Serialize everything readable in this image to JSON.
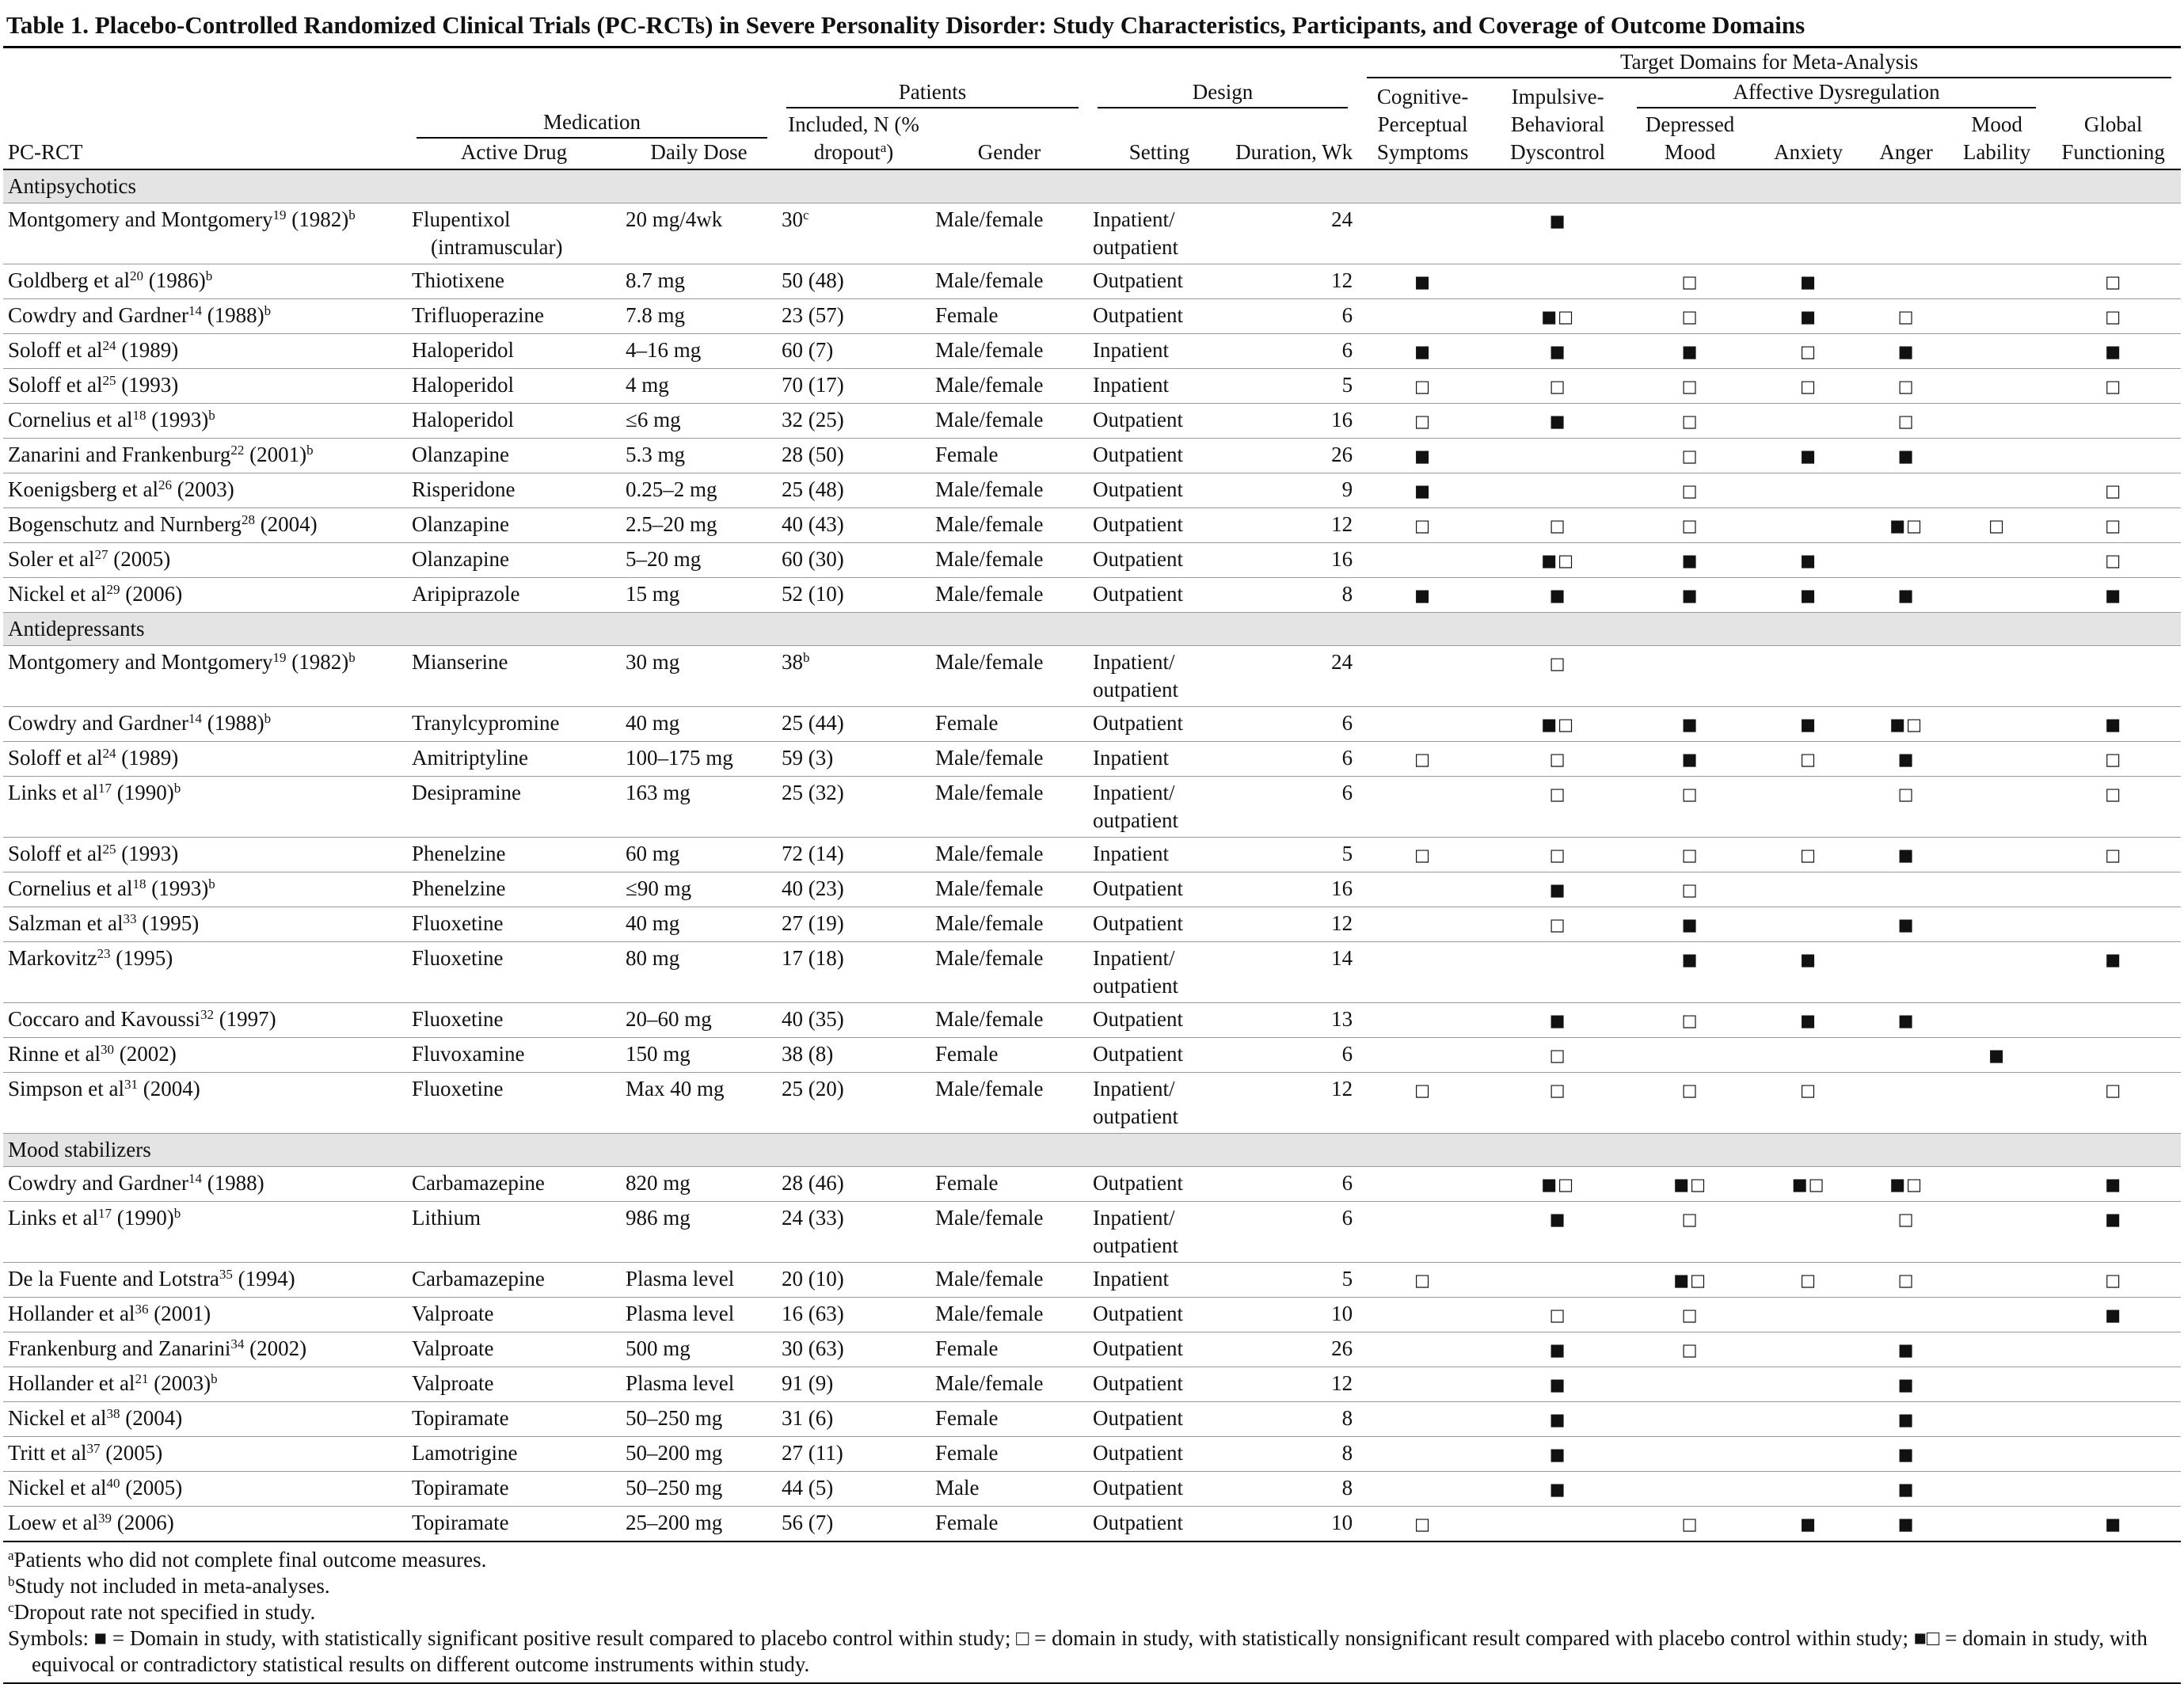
{
  "title": "Table 1. Placebo-Controlled Randomized Clinical Trials (PC-RCTs) in Severe Personality Disorder: Study Characteristics, Participants, and Coverage of Outcome Domains",
  "header": {
    "pc_rct": "PC-RCT",
    "medication": "Medication",
    "active_drug": "Active Drug",
    "daily_dose": "Daily Dose",
    "patients": "Patients",
    "included": "Included, N (% dropout",
    "included_note": "a",
    "included_close": ")",
    "gender": "Gender",
    "design": "Design",
    "setting": "Setting",
    "duration": "Duration, Wk",
    "target": "Target Domains for Meta-Analysis",
    "affective": "Affective Dysregulation",
    "domains": [
      "Cognitive-Perceptual Symptoms",
      "Impulsive-Behavioral Dyscontrol",
      "Depressed Mood",
      "Anxiety",
      "Anger",
      "Mood Lability",
      "Global Functioning"
    ]
  },
  "sections": [
    {
      "name": "Antipsychotics",
      "rows": [
        {
          "study": "Montgomery and Montgomery",
          "ref": "19",
          "year": "(1982)",
          "note": "b",
          "drug": "Flupentixol (intramuscular)",
          "dose": "20 mg/4wk",
          "n": "30",
          "n_note": "c",
          "gender": "Male/female",
          "setting": "Inpatient/ outpatient",
          "weeks": 24,
          "domains": [
            null,
            "■",
            null,
            null,
            null,
            null,
            null
          ]
        },
        {
          "study": "Goldberg et al",
          "ref": "20",
          "year": "(1986)",
          "note": "b",
          "drug": "Thiotixene",
          "dose": "8.7 mg",
          "n": "50 (48)",
          "gender": "Male/female",
          "setting": "Outpatient",
          "weeks": 12,
          "domains": [
            "■",
            null,
            "□",
            "■",
            null,
            null,
            "□"
          ]
        },
        {
          "study": "Cowdry and Gardner",
          "ref": "14",
          "year": "(1988)",
          "note": "b",
          "drug": "Trifluoperazine",
          "dose": "7.8 mg",
          "n": "23 (57)",
          "gender": "Female",
          "setting": "Outpatient",
          "weeks": 6,
          "domains": [
            null,
            "■□",
            "□",
            "■",
            "□",
            null,
            "□"
          ]
        },
        {
          "study": "Soloff et al",
          "ref": "24",
          "year": "(1989)",
          "drug": "Haloperidol",
          "dose": "4–16 mg",
          "n": "60 (7)",
          "gender": "Male/female",
          "setting": "Inpatient",
          "weeks": 6,
          "domains": [
            "■",
            "■",
            "■",
            "□",
            "■",
            null,
            "■"
          ]
        },
        {
          "study": "Soloff et al",
          "ref": "25",
          "year": "(1993)",
          "drug": "Haloperidol",
          "dose": "4 mg",
          "n": "70 (17)",
          "gender": "Male/female",
          "setting": "Inpatient",
          "weeks": 5,
          "domains": [
            "□",
            "□",
            "□",
            "□",
            "□",
            null,
            "□"
          ]
        },
        {
          "study": "Cornelius et al",
          "ref": "18",
          "year": "(1993)",
          "note": "b",
          "drug": "Haloperidol",
          "dose": "≤6 mg",
          "n": "32 (25)",
          "gender": "Male/female",
          "setting": "Outpatient",
          "weeks": 16,
          "domains": [
            "□",
            "■",
            "□",
            null,
            "□",
            null,
            null
          ]
        },
        {
          "study": "Zanarini and Frankenburg",
          "ref": "22",
          "year": "(2001)",
          "note": "b",
          "drug": "Olanzapine",
          "dose": "5.3 mg",
          "n": "28 (50)",
          "gender": "Female",
          "setting": "Outpatient",
          "weeks": 26,
          "domains": [
            "■",
            null,
            "□",
            "■",
            "■",
            null,
            null
          ]
        },
        {
          "study": "Koenigsberg et al",
          "ref": "26",
          "year": "(2003)",
          "drug": "Risperidone",
          "dose": "0.25–2 mg",
          "n": "25 (48)",
          "gender": "Male/female",
          "setting": "Outpatient",
          "weeks": 9,
          "domains": [
            "■",
            null,
            "□",
            null,
            null,
            null,
            "□"
          ]
        },
        {
          "study": "Bogenschutz and Nurnberg",
          "ref": "28",
          "year": "(2004)",
          "drug": "Olanzapine",
          "dose": "2.5–20 mg",
          "n": "40 (43)",
          "gender": "Male/female",
          "setting": "Outpatient",
          "weeks": 12,
          "domains": [
            "□",
            "□",
            "□",
            null,
            "■□",
            "□",
            "□"
          ]
        },
        {
          "study": "Soler et al",
          "ref": "27",
          "year": "(2005)",
          "drug": "Olanzapine",
          "dose": "5–20 mg",
          "n": "60 (30)",
          "gender": "Male/female",
          "setting": "Outpatient",
          "weeks": 16,
          "domains": [
            null,
            "■□",
            "■",
            "■",
            null,
            null,
            "□"
          ]
        },
        {
          "study": "Nickel et al",
          "ref": "29",
          "year": "(2006)",
          "drug": "Aripiprazole",
          "dose": "15 mg",
          "n": "52 (10)",
          "gender": "Male/female",
          "setting": "Outpatient",
          "weeks": 8,
          "domains": [
            "■",
            "■",
            "■",
            "■",
            "■",
            null,
            "■"
          ]
        }
      ]
    },
    {
      "name": "Antidepressants",
      "rows": [
        {
          "study": "Montgomery and Montgomery",
          "ref": "19",
          "year": "(1982)",
          "note": "b",
          "drug": "Mianserine",
          "dose": "30 mg",
          "n": "38",
          "n_note": "b",
          "gender": "Male/female",
          "setting": "Inpatient/ outpatient",
          "weeks": 24,
          "domains": [
            null,
            "□",
            null,
            null,
            null,
            null,
            null
          ]
        },
        {
          "study": "Cowdry and Gardner",
          "ref": "14",
          "year": "(1988)",
          "note": "b",
          "drug": "Tranylcypromine",
          "dose": "40 mg",
          "n": "25 (44)",
          "gender": "Female",
          "setting": "Outpatient",
          "weeks": 6,
          "domains": [
            null,
            "■□",
            "■",
            "■",
            "■□",
            null,
            "■"
          ]
        },
        {
          "study": "Soloff et al",
          "ref": "24",
          "year": "(1989)",
          "drug": "Amitriptyline",
          "dose": "100–175 mg",
          "n": "59 (3)",
          "gender": "Male/female",
          "setting": "Inpatient",
          "weeks": 6,
          "domains": [
            "□",
            "□",
            "■",
            "□",
            "■",
            null,
            "□"
          ]
        },
        {
          "study": "Links et al",
          "ref": "17",
          "year": "(1990)",
          "note": "b",
          "drug": "Desipramine",
          "dose": "163 mg",
          "n": "25 (32)",
          "gender": "Male/female",
          "setting": "Inpatient/ outpatient",
          "weeks": 6,
          "domains": [
            null,
            "□",
            "□",
            null,
            "□",
            null,
            "□"
          ]
        },
        {
          "study": "Soloff et al",
          "ref": "25",
          "year": "(1993)",
          "drug": "Phenelzine",
          "dose": "60 mg",
          "n": "72 (14)",
          "gender": "Male/female",
          "setting": "Inpatient",
          "weeks": 5,
          "domains": [
            "□",
            "□",
            "□",
            "□",
            "■",
            null,
            "□"
          ]
        },
        {
          "study": "Cornelius et al",
          "ref": "18",
          "year": "(1993)",
          "note": "b",
          "drug": "Phenelzine",
          "dose": "≤90 mg",
          "n": "40 (23)",
          "gender": "Male/female",
          "setting": "Outpatient",
          "weeks": 16,
          "domains": [
            null,
            "■",
            "□",
            null,
            null,
            null,
            null
          ]
        },
        {
          "study": "Salzman et al",
          "ref": "33",
          "year": "(1995)",
          "drug": "Fluoxetine",
          "dose": "40 mg",
          "n": "27 (19)",
          "gender": "Male/female",
          "setting": "Outpatient",
          "weeks": 12,
          "domains": [
            null,
            "□",
            "■",
            null,
            "■",
            null,
            null
          ]
        },
        {
          "study": "Markovitz",
          "ref": "23",
          "year": "(1995)",
          "drug": "Fluoxetine",
          "dose": "80 mg",
          "n": "17 (18)",
          "gender": "Male/female",
          "setting": "Inpatient/ outpatient",
          "weeks": 14,
          "domains": [
            null,
            null,
            "■",
            "■",
            null,
            null,
            "■"
          ]
        },
        {
          "study": "Coccaro and Kavoussi",
          "ref": "32",
          "year": "(1997)",
          "drug": "Fluoxetine",
          "dose": "20–60 mg",
          "n": "40 (35)",
          "gender": "Male/female",
          "setting": "Outpatient",
          "weeks": 13,
          "domains": [
            null,
            "■",
            "□",
            "■",
            "■",
            null,
            null
          ]
        },
        {
          "study": "Rinne et al",
          "ref": "30",
          "year": "(2002)",
          "drug": "Fluvoxamine",
          "dose": "150 mg",
          "n": "38 (8)",
          "gender": "Female",
          "setting": "Outpatient",
          "weeks": 6,
          "domains": [
            null,
            "□",
            null,
            null,
            null,
            "■",
            null
          ]
        },
        {
          "study": "Simpson et al",
          "ref": "31",
          "year": "(2004)",
          "drug": "Fluoxetine",
          "dose": "Max 40 mg",
          "n": "25 (20)",
          "gender": "Male/female",
          "setting": "Inpatient/ outpatient",
          "weeks": 12,
          "domains": [
            "□",
            "□",
            "□",
            "□",
            null,
            null,
            "□"
          ]
        }
      ]
    },
    {
      "name": "Mood stabilizers",
      "rows": [
        {
          "study": "Cowdry and Gardner",
          "ref": "14",
          "year": "(1988)",
          "drug": "Carbamazepine",
          "dose": "820 mg",
          "n": "28 (46)",
          "gender": "Female",
          "setting": "Outpatient",
          "weeks": 6,
          "domains": [
            null,
            "■□",
            "■□",
            "■□",
            "■□",
            null,
            "■"
          ]
        },
        {
          "study": "Links et al",
          "ref": "17",
          "year": "(1990)",
          "note": "b",
          "drug": "Lithium",
          "dose": "986 mg",
          "n": "24 (33)",
          "gender": "Male/female",
          "setting": "Inpatient/ outpatient",
          "weeks": 6,
          "domains": [
            null,
            "■",
            "□",
            null,
            "□",
            null,
            "■"
          ]
        },
        {
          "study": "De la Fuente and Lotstra",
          "ref": "35",
          "year": "(1994)",
          "drug": "Carbamazepine",
          "dose": "Plasma level",
          "n": "20 (10)",
          "gender": "Male/female",
          "setting": "Inpatient",
          "weeks": 5,
          "domains": [
            "□",
            null,
            "■□",
            "□",
            "□",
            null,
            "□"
          ]
        },
        {
          "study": "Hollander et al",
          "ref": "36",
          "year": "(2001)",
          "drug": "Valproate",
          "dose": "Plasma level",
          "n": "16 (63)",
          "gender": "Male/female",
          "setting": "Outpatient",
          "weeks": 10,
          "domains": [
            null,
            "□",
            "□",
            null,
            null,
            null,
            "■"
          ]
        },
        {
          "study": "Frankenburg and Zanarini",
          "ref": "34",
          "year": "(2002)",
          "drug": "Valproate",
          "dose": "500 mg",
          "n": "30 (63)",
          "gender": "Female",
          "setting": "Outpatient",
          "weeks": 26,
          "domains": [
            null,
            "■",
            "□",
            null,
            "■",
            null,
            null
          ]
        },
        {
          "study": "Hollander et al",
          "ref": "21",
          "year": "(2003)",
          "note": "b",
          "drug": "Valproate",
          "dose": "Plasma level",
          "n": "91 (9)",
          "gender": "Male/female",
          "setting": "Outpatient",
          "weeks": 12,
          "domains": [
            null,
            "■",
            null,
            null,
            "■",
            null,
            null
          ]
        },
        {
          "study": "Nickel et al",
          "ref": "38",
          "year": "(2004)",
          "drug": "Topiramate",
          "dose": "50–250 mg",
          "n": "31 (6)",
          "gender": "Female",
          "setting": "Outpatient",
          "weeks": 8,
          "domains": [
            null,
            "■",
            null,
            null,
            "■",
            null,
            null
          ]
        },
        {
          "study": "Tritt et al",
          "ref": "37",
          "year": "(2005)",
          "drug": "Lamotrigine",
          "dose": "50–200 mg",
          "n": "27 (11)",
          "gender": "Female",
          "setting": "Outpatient",
          "weeks": 8,
          "domains": [
            null,
            "■",
            null,
            null,
            "■",
            null,
            null
          ]
        },
        {
          "study": "Nickel et al",
          "ref": "40",
          "year": "(2005)",
          "drug": "Topiramate",
          "dose": "50–250 mg",
          "n": "44 (5)",
          "gender": "Male",
          "setting": "Outpatient",
          "weeks": 8,
          "domains": [
            null,
            "■",
            null,
            null,
            "■",
            null,
            null
          ]
        },
        {
          "study": "Loew et al",
          "ref": "39",
          "year": "(2006)",
          "drug": "Topiramate",
          "dose": "25–200 mg",
          "n": "56 (7)",
          "gender": "Female",
          "setting": "Outpatient",
          "weeks": 10,
          "domains": [
            "□",
            null,
            "□",
            "■",
            "■",
            null,
            "■"
          ]
        }
      ]
    }
  ],
  "footnotes": [
    {
      "mark": "a",
      "text": "Patients who did not complete final outcome measures."
    },
    {
      "mark": "b",
      "text": "Study not included in meta-analyses."
    },
    {
      "mark": "c",
      "text": "Dropout rate not specified in study."
    }
  ],
  "symbols": "Symbols: ■ = Domain in study, with statistically significant positive result compared to placebo control within study; □ = domain in study, with statistically nonsignificant result compared with placebo control within study; ■□ = domain in study, with equivocal or contradictory statistical results on different outcome instruments within study."
}
